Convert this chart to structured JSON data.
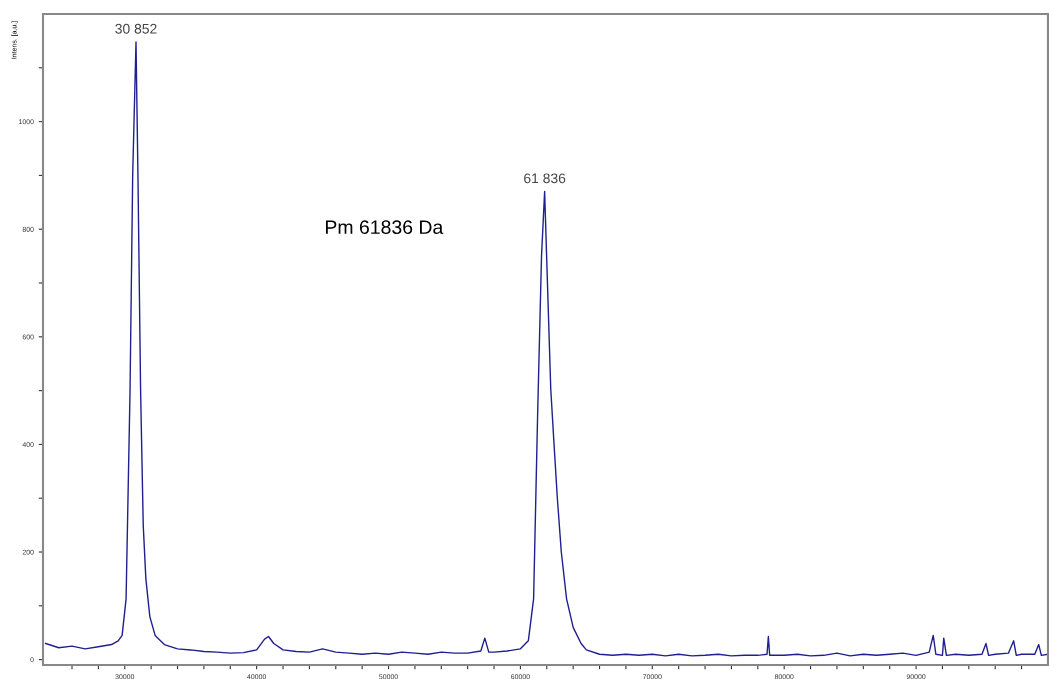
{
  "chart_data": {
    "type": "line",
    "ylabel": "Intens. [a.u.]",
    "x": [
      24000,
      25000,
      26000,
      27000,
      28000,
      29000,
      29500,
      29800,
      30100,
      30400,
      30600,
      30852,
      31000,
      31200,
      31400,
      31600,
      31900,
      32300,
      33000,
      34000,
      35000,
      36000,
      37000,
      38000,
      39000,
      40000,
      40600,
      40900,
      41300,
      42000,
      43000,
      44000,
      45000,
      46000,
      47000,
      48000,
      49000,
      50000,
      51000,
      52000,
      53000,
      54000,
      55000,
      56000,
      57000,
      57300,
      57600,
      58000,
      59000,
      60000,
      60600,
      61000,
      61300,
      61600,
      61836,
      62050,
      62300,
      62550,
      62800,
      63100,
      63500,
      64000,
      64600,
      65000,
      66000,
      67000,
      68000,
      69000,
      70000,
      71000,
      72000,
      73000,
      74000,
      75000,
      76000,
      77000,
      78000,
      78700,
      78800,
      78900,
      80000,
      81000,
      82000,
      83000,
      84000,
      85000,
      86000,
      87000,
      88000,
      89000,
      90000,
      91000,
      91300,
      91500,
      92000,
      92100,
      92300,
      93000,
      94000,
      95000,
      95300,
      95500,
      96000,
      97000,
      97400,
      97600,
      98000,
      99000,
      99300,
      99500,
      100000
    ],
    "series": [
      {
        "color": "#1f1f8f",
        "values": [
          30,
          22,
          25,
          20,
          24,
          28,
          35,
          45,
          113,
          500,
          900,
          1148,
          900,
          500,
          250,
          150,
          80,
          45,
          28,
          20,
          18,
          15,
          14,
          12,
          13,
          18,
          38,
          43,
          30,
          18,
          15,
          14,
          20,
          14,
          12,
          10,
          12,
          10,
          14,
          12,
          10,
          14,
          12,
          12,
          16,
          40,
          14,
          14,
          16,
          20,
          35,
          113,
          450,
          750,
          870,
          700,
          503,
          400,
          300,
          200,
          113,
          60,
          30,
          18,
          10,
          8,
          10,
          8,
          10,
          7,
          10,
          7,
          8,
          10,
          7,
          8,
          8,
          10,
          43,
          8,
          8,
          10,
          7,
          8,
          12,
          7,
          10,
          8,
          10,
          12,
          8,
          14,
          45,
          10,
          8,
          40,
          8,
          10,
          8,
          10,
          30,
          8,
          10,
          12,
          35,
          8,
          10,
          10,
          28,
          8,
          10
        ]
      }
    ],
    "xlim": [
      23800,
      100000
    ],
    "xticks": [
      {
        "value": 26000,
        "label": null
      },
      {
        "value": 28000,
        "label": null
      },
      30000,
      {
        "value": 32000,
        "label": null
      },
      {
        "value": 34000,
        "label": null
      },
      {
        "value": 36000,
        "label": null
      },
      {
        "value": 38000,
        "label": null
      },
      40000,
      {
        "value": 42000,
        "label": null
      },
      {
        "value": 44000,
        "label": null
      },
      {
        "value": 46000,
        "label": null
      },
      {
        "value": 48000,
        "label": null
      },
      50000,
      {
        "value": 52000,
        "label": null
      },
      {
        "value": 54000,
        "label": null
      },
      {
        "value": 56000,
        "label": null
      },
      {
        "value": 58000,
        "label": null
      },
      60000,
      {
        "value": 62000,
        "label": null
      },
      {
        "value": 64000,
        "label": null
      },
      {
        "value": 66000,
        "label": null
      },
      {
        "value": 68000,
        "label": null
      },
      70000,
      {
        "value": 72000,
        "label": null
      },
      {
        "value": 74000,
        "label": null
      },
      {
        "value": 76000,
        "label": null
      },
      {
        "value": 78000,
        "label": null
      },
      80000,
      {
        "value": 82000,
        "label": null
      },
      {
        "value": 84000,
        "label": null
      },
      {
        "value": 86000,
        "label": null
      },
      {
        "value": 88000,
        "label": null
      },
      90000,
      {
        "value": 92000,
        "label": null
      },
      {
        "value": 94000,
        "label": null
      },
      {
        "value": 96000,
        "label": null
      },
      {
        "value": 98000,
        "label": null
      }
    ],
    "ylim": [
      -10,
      1200
    ],
    "yticks": [
      0,
      {
        "value": 100,
        "label": null
      },
      200,
      {
        "value": 300,
        "label": null
      },
      400,
      {
        "value": 500,
        "label": null
      },
      600,
      {
        "value": 700,
        "label": null
      },
      800,
      {
        "value": 900,
        "label": null
      },
      1000,
      {
        "value": 1100,
        "label": null
      }
    ],
    "grid": false,
    "legend": false,
    "marker": "none",
    "line_style": "solid",
    "annotations": [
      {
        "text": "30 852",
        "x": 30852,
        "y": 1148
      },
      {
        "text": "61 836",
        "x": 61836,
        "y": 870
      },
      "Pm 61836 Da"
    ]
  }
}
